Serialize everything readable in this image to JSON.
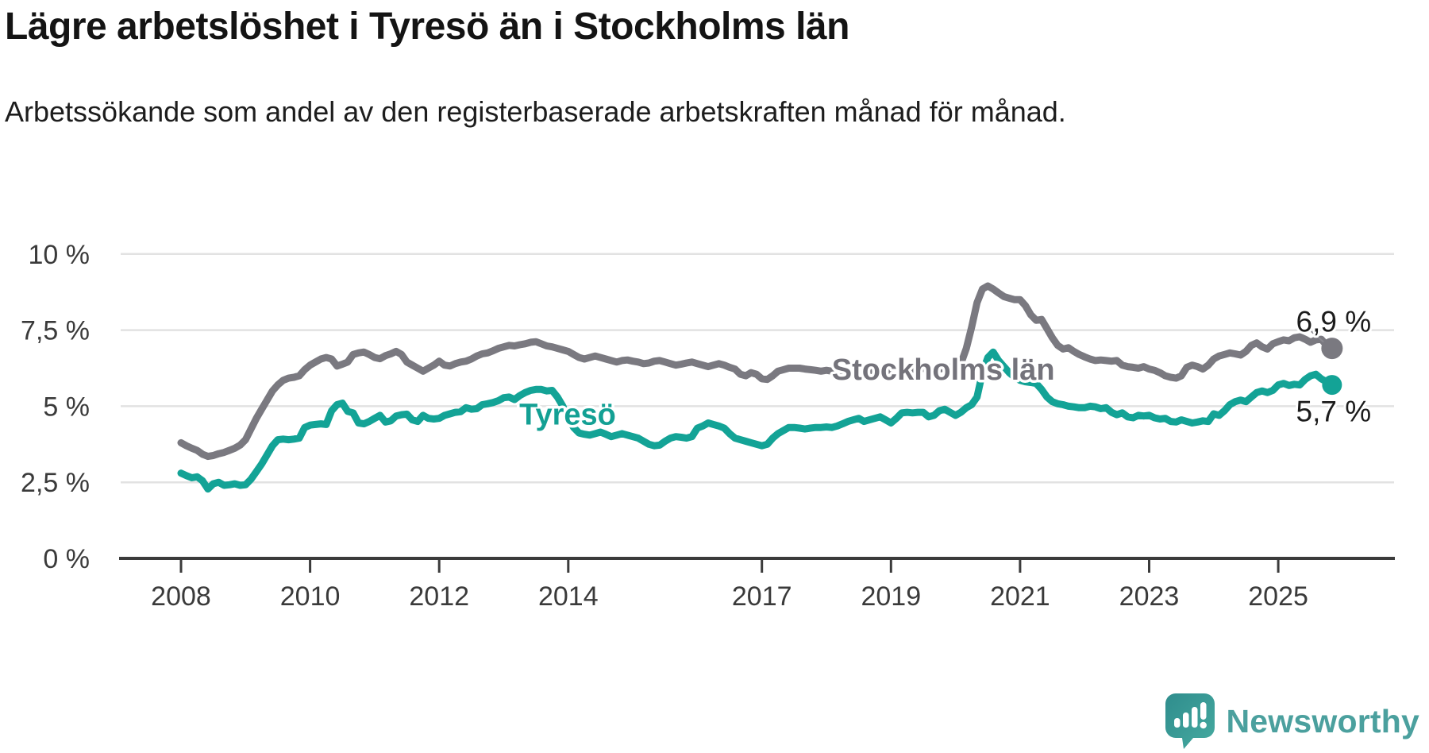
{
  "header": {
    "title": "Lägre arbetslöshet i Tyresö än i Stockholms län",
    "subtitle": "Arbetssökande som andel av den registerbaserade arbetskraften månad för månad."
  },
  "footer": {
    "brand": "Newsworthy"
  },
  "colors": {
    "stockholm_line": "#7a7980",
    "tyreso_line": "#13a396",
    "gridline": "#e2e2e2",
    "axis": "#3b3b3b",
    "tick_text": "#3a3a3a",
    "value_label_text": "#1c1c1c",
    "logo_teal": "#4ba09e",
    "logo_bubble": "#3e9c97"
  },
  "chart_data": {
    "type": "line",
    "unit": "%",
    "grid": true,
    "legend": "inline-labels",
    "x_axis": {
      "ticks": [
        2008,
        2010,
        2012,
        2014,
        2017,
        2019,
        2021,
        2023,
        2025
      ]
    },
    "y_axis": {
      "tick_labels": [
        "0 %",
        "2,5 %",
        "5 %",
        "7,5 %",
        "10 %"
      ],
      "tick_values": [
        0,
        2.5,
        5,
        7.5,
        10
      ],
      "range": [
        0,
        10
      ]
    },
    "x_range": [
      2008.0,
      2025.92
    ],
    "series": [
      {
        "name": "Stockholms län",
        "color": "#7a7980",
        "label_color": "#74737b",
        "end_label": "6,9 %",
        "end_value": 6.9,
        "label_at": {
          "x": 2019.81,
          "y": 6.21
        },
        "start_year": 2008,
        "step_months": 1,
        "values": [
          3.8,
          3.7,
          3.62,
          3.55,
          3.42,
          3.35,
          3.38,
          3.44,
          3.48,
          3.55,
          3.62,
          3.72,
          3.9,
          4.25,
          4.6,
          4.9,
          5.2,
          5.5,
          5.7,
          5.85,
          5.92,
          5.95,
          6.0,
          6.2,
          6.35,
          6.45,
          6.55,
          6.6,
          6.55,
          6.32,
          6.38,
          6.45,
          6.7,
          6.75,
          6.78,
          6.7,
          6.6,
          6.56,
          6.66,
          6.72,
          6.8,
          6.7,
          6.45,
          6.35,
          6.25,
          6.15,
          6.25,
          6.35,
          6.48,
          6.35,
          6.32,
          6.4,
          6.45,
          6.48,
          6.55,
          6.65,
          6.72,
          6.75,
          6.82,
          6.9,
          6.95,
          7.0,
          6.98,
          7.02,
          7.05,
          7.1,
          7.12,
          7.05,
          6.98,
          6.95,
          6.9,
          6.85,
          6.8,
          6.7,
          6.6,
          6.55,
          6.6,
          6.65,
          6.6,
          6.55,
          6.5,
          6.45,
          6.5,
          6.52,
          6.48,
          6.45,
          6.4,
          6.42,
          6.48,
          6.5,
          6.45,
          6.4,
          6.35,
          6.38,
          6.42,
          6.45,
          6.4,
          6.35,
          6.3,
          6.35,
          6.4,
          6.35,
          6.28,
          6.22,
          6.05,
          6.0,
          6.1,
          6.05,
          5.9,
          5.88,
          6.0,
          6.15,
          6.2,
          6.25,
          6.25,
          6.25,
          6.22,
          6.2,
          6.18,
          6.15,
          6.18,
          6.15,
          6.16,
          6.15,
          6.18,
          6.15,
          6.16,
          6.15,
          6.18,
          6.17,
          6.2,
          6.18,
          6.18,
          6.2,
          6.22,
          6.2,
          6.22,
          6.2,
          6.25,
          6.22,
          6.24,
          6.22,
          6.26,
          6.28,
          6.3,
          6.4,
          6.9,
          7.6,
          8.4,
          8.85,
          8.95,
          8.85,
          8.72,
          8.6,
          8.55,
          8.5,
          8.5,
          8.3,
          8.0,
          7.82,
          7.85,
          7.55,
          7.25,
          7.0,
          6.88,
          6.92,
          6.8,
          6.7,
          6.62,
          6.55,
          6.5,
          6.52,
          6.5,
          6.48,
          6.5,
          6.35,
          6.3,
          6.28,
          6.25,
          6.3,
          6.22,
          6.18,
          6.1,
          6.0,
          5.95,
          5.92,
          6.0,
          6.28,
          6.35,
          6.3,
          6.22,
          6.35,
          6.55,
          6.65,
          6.7,
          6.75,
          6.72,
          6.68,
          6.8,
          7.0,
          7.08,
          6.95,
          6.88,
          7.05,
          7.12,
          7.18,
          7.15,
          7.25,
          7.28,
          7.2,
          7.1,
          7.18,
          7.2,
          7.0,
          6.9
        ]
      },
      {
        "name": "Tyresö",
        "color": "#13a396",
        "label_color": "#13a094",
        "end_label": "5,7 %",
        "end_value": 5.7,
        "label_at": {
          "x": 2013.99,
          "y": 4.73
        },
        "start_year": 2008,
        "step_months": 1,
        "values": [
          2.8,
          2.72,
          2.65,
          2.68,
          2.55,
          2.28,
          2.45,
          2.5,
          2.4,
          2.42,
          2.45,
          2.4,
          2.42,
          2.6,
          2.85,
          3.1,
          3.4,
          3.7,
          3.9,
          3.92,
          3.9,
          3.92,
          3.95,
          4.3,
          4.38,
          4.4,
          4.42,
          4.4,
          4.85,
          5.05,
          5.1,
          4.83,
          4.78,
          4.45,
          4.42,
          4.5,
          4.6,
          4.7,
          4.48,
          4.52,
          4.68,
          4.72,
          4.74,
          4.55,
          4.5,
          4.7,
          4.6,
          4.58,
          4.6,
          4.7,
          4.75,
          4.8,
          4.82,
          4.95,
          4.9,
          4.92,
          5.05,
          5.08,
          5.12,
          5.18,
          5.28,
          5.3,
          5.22,
          5.35,
          5.45,
          5.52,
          5.55,
          5.55,
          5.5,
          5.52,
          5.3,
          5.0,
          4.6,
          4.3,
          4.12,
          4.08,
          4.05,
          4.1,
          4.15,
          4.08,
          4.0,
          4.05,
          4.1,
          4.05,
          4.0,
          3.95,
          3.85,
          3.75,
          3.7,
          3.72,
          3.85,
          3.95,
          4.0,
          3.98,
          3.95,
          4.0,
          4.28,
          4.35,
          4.45,
          4.4,
          4.35,
          4.28,
          4.1,
          3.95,
          3.9,
          3.85,
          3.8,
          3.75,
          3.7,
          3.75,
          3.95,
          4.1,
          4.2,
          4.3,
          4.3,
          4.28,
          4.25,
          4.28,
          4.3,
          4.3,
          4.32,
          4.3,
          4.35,
          4.42,
          4.5,
          4.55,
          4.6,
          4.5,
          4.55,
          4.6,
          4.65,
          4.55,
          4.45,
          4.6,
          4.78,
          4.8,
          4.78,
          4.8,
          4.8,
          4.65,
          4.7,
          4.85,
          4.9,
          4.8,
          4.7,
          4.8,
          4.95,
          5.05,
          5.3,
          6.1,
          6.6,
          6.78,
          6.5,
          6.3,
          6.1,
          5.95,
          5.85,
          5.8,
          5.78,
          5.75,
          5.55,
          5.3,
          5.15,
          5.08,
          5.05,
          5.0,
          4.98,
          4.95,
          4.95,
          5.0,
          4.98,
          4.92,
          4.95,
          4.8,
          4.72,
          4.78,
          4.65,
          4.62,
          4.7,
          4.68,
          4.7,
          4.62,
          4.58,
          4.6,
          4.5,
          4.48,
          4.55,
          4.5,
          4.45,
          4.48,
          4.52,
          4.5,
          4.75,
          4.7,
          4.85,
          5.05,
          5.15,
          5.2,
          5.15,
          5.3,
          5.45,
          5.5,
          5.45,
          5.52,
          5.7,
          5.75,
          5.68,
          5.72,
          5.7,
          5.88,
          6.0,
          6.05,
          5.9,
          5.8,
          5.7
        ]
      }
    ]
  }
}
